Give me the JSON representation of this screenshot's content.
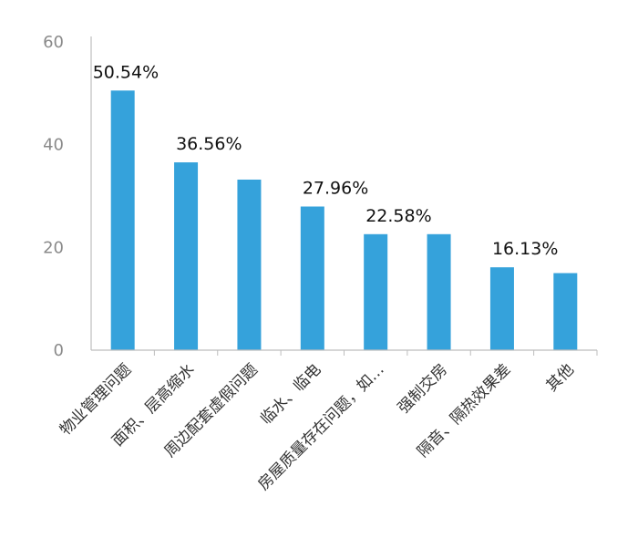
{
  "chart_data": {
    "type": "bar",
    "categories": [
      "物业管理问题",
      "面积、层高缩水",
      "周边配套虚假问题",
      "临水、临电",
      "房屋质量存在问题，如…",
      "强制交房",
      "隔音、隔热效果差",
      "其他"
    ],
    "values": [
      50.54,
      36.56,
      33.2,
      27.96,
      22.58,
      22.58,
      16.13,
      15.0
    ],
    "data_labels": [
      "50.54%",
      "36.56%",
      "",
      "27.96%",
      "22.58%",
      "",
      "16.13%",
      ""
    ],
    "ylim": [
      0,
      60
    ],
    "yticks": [
      "0",
      "20",
      "40",
      "60"
    ],
    "grid": false,
    "bar_color": "#35A2DB",
    "axis_color": "#BDBDBD"
  }
}
